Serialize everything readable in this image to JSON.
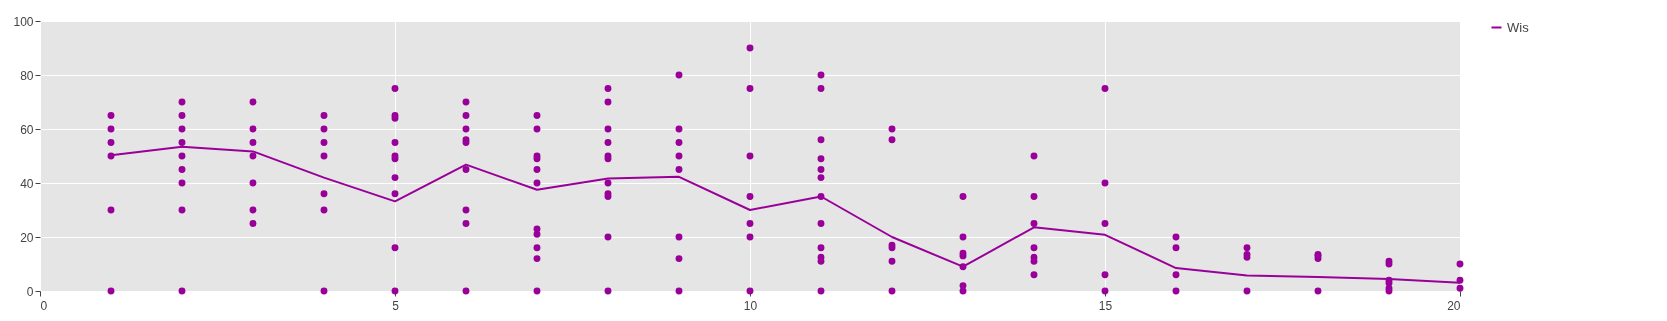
{
  "chart_data": {
    "type": "scatter",
    "xlim": [
      0,
      20
    ],
    "ylim": [
      0,
      100
    ],
    "xticks": [
      0,
      5,
      10,
      15,
      20
    ],
    "yticks": [
      0,
      20,
      40,
      60,
      80,
      100
    ],
    "grid": true,
    "legend": "top right",
    "series": [
      {
        "marker": "circle",
        "color": "#990099",
        "x": [
          1,
          1,
          1,
          1,
          1,
          1,
          2,
          2,
          2,
          2,
          2,
          2,
          2,
          2,
          2,
          3,
          3,
          3,
          3,
          3,
          3,
          3,
          4,
          4,
          4,
          4,
          4,
          4,
          4,
          5,
          5,
          5,
          5,
          5,
          5,
          5,
          5,
          5,
          5,
          6,
          6,
          6,
          6,
          6,
          6,
          6,
          6,
          6,
          7,
          7,
          7,
          7,
          7,
          7,
          7,
          7,
          7,
          7,
          7,
          8,
          8,
          8,
          8,
          8,
          8,
          8,
          8,
          8,
          8,
          8,
          9,
          9,
          9,
          9,
          9,
          9,
          9,
          9,
          10,
          10,
          10,
          10,
          10,
          10,
          10,
          11,
          11,
          11,
          11,
          11,
          11,
          11,
          11,
          11,
          11,
          11,
          11,
          12,
          12,
          12,
          12,
          12,
          12,
          13,
          13,
          13,
          13,
          13,
          13,
          13,
          14,
          14,
          14,
          14,
          14,
          14,
          14,
          15,
          15,
          15,
          15,
          15,
          16,
          16,
          16,
          16,
          17,
          17,
          17,
          17,
          18,
          18,
          18,
          18,
          19,
          19,
          19,
          19,
          19,
          19,
          20,
          20,
          20
        ],
        "values": [
          65,
          60,
          55,
          50,
          30,
          0,
          70,
          65,
          60,
          55,
          50,
          45,
          40,
          30,
          0,
          70,
          60,
          55,
          50,
          40,
          30,
          25,
          65,
          60,
          55,
          50,
          36,
          30,
          0,
          75,
          65,
          64,
          55,
          50,
          49,
          42,
          36,
          16,
          0,
          70,
          65,
          60,
          56,
          55,
          45,
          30,
          25,
          0,
          65,
          60,
          50,
          49,
          45,
          40,
          23,
          21,
          16,
          12,
          0,
          75,
          70,
          60,
          55,
          50,
          49,
          40,
          36,
          35,
          20,
          0,
          80,
          60,
          55,
          50,
          45,
          20,
          12,
          0,
          90,
          75,
          50,
          35,
          25,
          20,
          0,
          80,
          75,
          56,
          49,
          45,
          42,
          35,
          25,
          16,
          12.5,
          11,
          0,
          60,
          56,
          17,
          16,
          11,
          0,
          35,
          20,
          14,
          13,
          9,
          2,
          0,
          50,
          35,
          25,
          16,
          12.5,
          11,
          6,
          75,
          40,
          25,
          6,
          0,
          20,
          16,
          6,
          0,
          16,
          13.5,
          12.5,
          0,
          13.5,
          13,
          12,
          0,
          11,
          10,
          4,
          3,
          1,
          0,
          10,
          4,
          1
        ]
      },
      {
        "type": "line",
        "name": "Wis",
        "color": "#990099",
        "x": [
          1,
          2,
          3,
          4,
          5,
          6,
          7,
          8,
          9,
          10,
          11,
          12,
          13,
          14,
          15,
          16,
          17,
          18,
          19,
          20
        ],
        "values": [
          50.3,
          53.4,
          51.7,
          42,
          33.2,
          46.8,
          37.5,
          41.7,
          42.3,
          30,
          35,
          20,
          9,
          23.6,
          20.8,
          8.5,
          5.7,
          5.2,
          4.4,
          3.1
        ]
      }
    ]
  }
}
